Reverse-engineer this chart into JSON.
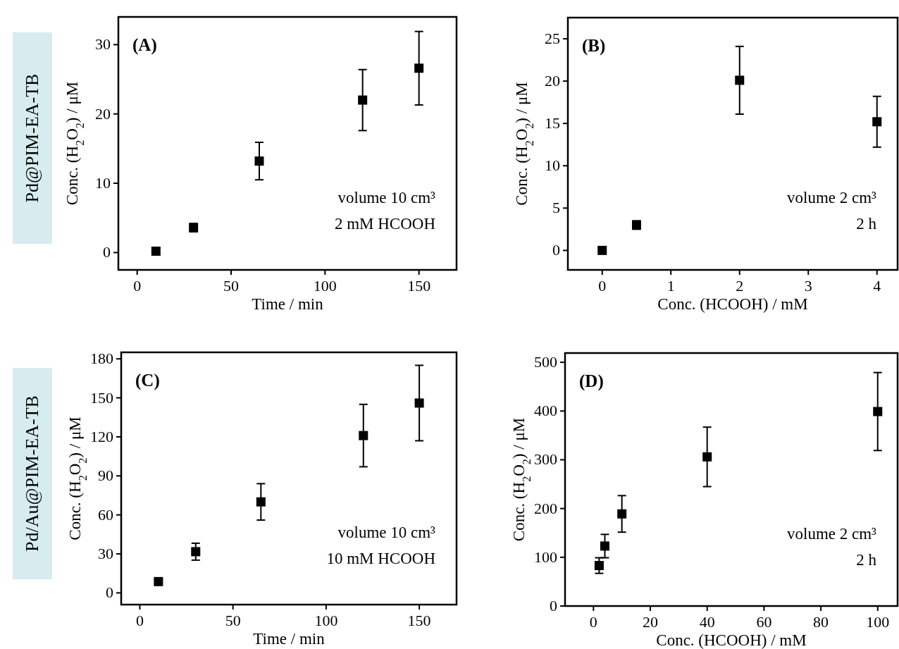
{
  "chart_data": [
    {
      "type": "scatter",
      "xlabel": "Time / min",
      "ylabel": "Conc. (H$_{2}$O$_{2}$) / μM",
      "xlim": [
        -10,
        170
      ],
      "ylim": [
        -2.5,
        34
      ],
      "xticks": [
        0,
        50,
        100,
        150
      ],
      "yticks": [
        0,
        10,
        20,
        30
      ],
      "marker": "square",
      "color": "#000000",
      "x": [
        10,
        30,
        65,
        120,
        150
      ],
      "values": [
        0.2,
        3.6,
        13.2,
        22.0,
        26.6
      ],
      "errors": [
        0.4,
        0.6,
        2.7,
        4.4,
        5.3
      ],
      "annotations": [
        "(A)",
        "volume 10 cm³",
        "2 mM HCOOH",
        "Pd@PIM-EA-TB"
      ]
    },
    {
      "type": "scatter",
      "xlabel": "Conc. (HCOOH) / mM",
      "ylabel": "Conc. (H$_{2}$O$_{2}$) / μM",
      "xlim": [
        -0.5,
        4.3
      ],
      "ylim": [
        -2.3,
        27.5
      ],
      "xticks": [
        0,
        1,
        2,
        3,
        4
      ],
      "yticks": [
        0,
        5,
        10,
        15,
        20,
        25
      ],
      "marker": "square",
      "color": "#000000",
      "x": [
        0,
        0.5,
        2,
        4
      ],
      "values": [
        0,
        3.0,
        20.1,
        15.2
      ],
      "errors": [
        null,
        0.5,
        4,
        3
      ],
      "annotations": [
        "(B)",
        "volume 2 cm³",
        "2 h"
      ]
    },
    {
      "type": "scatter",
      "xlabel": "Time / min",
      "ylabel": "Conc. (H$_{2}$O$_{2}$) / μM",
      "xlim": [
        -10,
        170
      ],
      "ylim": [
        -9,
        185
      ],
      "xticks": [
        0,
        50,
        100,
        150
      ],
      "yticks": [
        0,
        30,
        60,
        90,
        120,
        150,
        180
      ],
      "marker": "square",
      "color": "#000000",
      "x": [
        10,
        30,
        65,
        120,
        150
      ],
      "values": [
        8.7,
        31.7,
        70,
        121,
        146
      ],
      "errors": [
        2,
        6.5,
        14,
        24,
        29
      ],
      "annotations": [
        "(C)",
        "volume 10 cm³",
        "10 mM HCOOH",
        "Pd/Au@PIM-EA-TB"
      ]
    },
    {
      "type": "scatter",
      "xlabel": "Conc. (HCOOH) / mM",
      "ylabel": "Conc. (H$_{2}$O$_{2}$) / μM",
      "xlim": [
        -10,
        107
      ],
      "ylim": [
        0,
        519
      ],
      "xticks": [
        0,
        20,
        40,
        60,
        80,
        100
      ],
      "yticks": [
        0,
        100,
        200,
        300,
        400,
        500
      ],
      "marker": "square",
      "color": "#000000",
      "x": [
        2,
        4,
        10,
        40,
        100
      ],
      "values": [
        83,
        123,
        189,
        306,
        399
      ],
      "errors": [
        16,
        24,
        37.5,
        61,
        80
      ],
      "annotations": [
        "(D)",
        "volume 2 cm³",
        "2 h"
      ]
    }
  ]
}
